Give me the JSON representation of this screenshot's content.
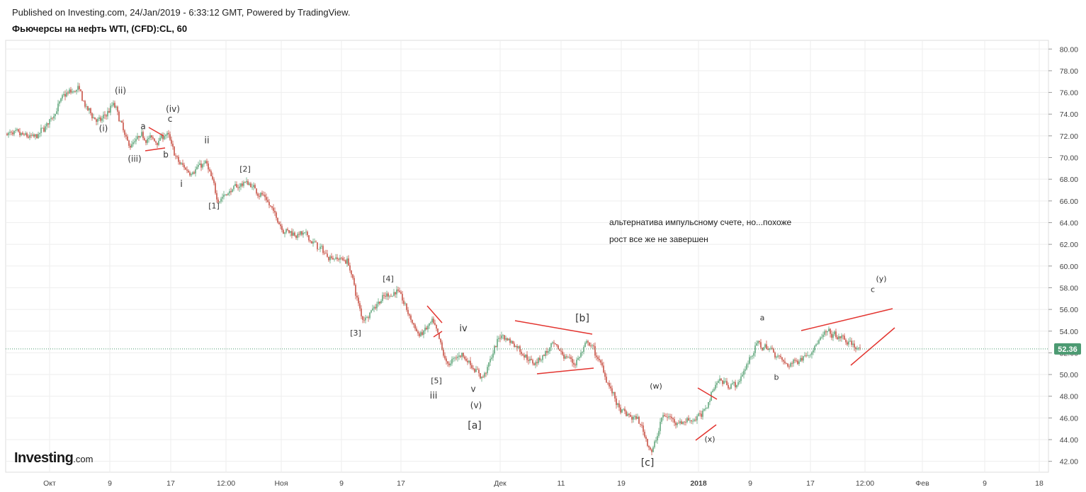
{
  "header": {
    "published": "Published on Investing.com, 24/Jan/2019 - 6:33:12 GMT, Powered by TradingView.",
    "title": "Фьючерсы на нефть WTI, (CFD):CL, 60"
  },
  "logo": {
    "main": "Investing",
    "suffix": ".com"
  },
  "note": {
    "line1": "альтернатива импульсному счете, но...похоже",
    "line2": "рост все же не завершен"
  },
  "colors": {
    "up": "#4a9a6a",
    "down": "#c0392b",
    "annotation": "#e3342f",
    "last_price_bg": "#4c9a72",
    "grid": "#eeeeee",
    "price_line": "#4c9a72"
  },
  "chart_data": {
    "type": "candlestick",
    "y_axis": {
      "min": 41,
      "max": 80.8,
      "ticks": [
        "80.00",
        "78.00",
        "76.00",
        "74.00",
        "72.00",
        "70.00",
        "68.00",
        "66.00",
        "64.00",
        "62.00",
        "60.00",
        "58.00",
        "56.00",
        "54.00",
        "52.00",
        "50.00",
        "48.00",
        "46.00",
        "44.00",
        "42.00"
      ]
    },
    "x_axis": {
      "ticks": [
        "Окт",
        "9",
        "17",
        "12:00",
        "Ноя",
        "9",
        "17",
        "Дек",
        "11",
        "19",
        "2018",
        "9",
        "17",
        "12:00",
        "Фев",
        "9",
        "18"
      ],
      "bold_tick": "2018"
    },
    "last_price": "52.36",
    "price_path": [
      {
        "i": 0,
        "p": 72.2
      },
      {
        "i": 20,
        "p": 71.8
      },
      {
        "i": 30,
        "p": 73.5
      },
      {
        "i": 40,
        "p": 75.8
      },
      {
        "i": 50,
        "p": 76.3
      },
      {
        "i": 55,
        "p": 74.5
      },
      {
        "i": 65,
        "p": 73.2
      },
      {
        "i": 75,
        "p": 75.0
      },
      {
        "i": 85,
        "p": 71.0
      },
      {
        "i": 95,
        "p": 72.0
      },
      {
        "i": 105,
        "p": 71.5
      },
      {
        "i": 112,
        "p": 72.3
      },
      {
        "i": 120,
        "p": 69.5
      },
      {
        "i": 128,
        "p": 68.7
      },
      {
        "i": 140,
        "p": 69.5
      },
      {
        "i": 148,
        "p": 66.1
      },
      {
        "i": 158,
        "p": 67.0
      },
      {
        "i": 168,
        "p": 67.8
      },
      {
        "i": 180,
        "p": 66.5
      },
      {
        "i": 195,
        "p": 63.3
      },
      {
        "i": 210,
        "p": 62.8
      },
      {
        "i": 225,
        "p": 61.0
      },
      {
        "i": 240,
        "p": 60.5
      },
      {
        "i": 250,
        "p": 55.0
      },
      {
        "i": 262,
        "p": 56.8
      },
      {
        "i": 275,
        "p": 57.8
      },
      {
        "i": 290,
        "p": 53.5
      },
      {
        "i": 300,
        "p": 54.8
      },
      {
        "i": 310,
        "p": 50.8
      },
      {
        "i": 320,
        "p": 52.0
      },
      {
        "i": 335,
        "p": 49.6
      },
      {
        "i": 348,
        "p": 53.8
      },
      {
        "i": 360,
        "p": 52.5
      },
      {
        "i": 370,
        "p": 51.0
      },
      {
        "i": 385,
        "p": 52.6
      },
      {
        "i": 400,
        "p": 51.0
      },
      {
        "i": 410,
        "p": 53.0
      },
      {
        "i": 420,
        "p": 50.5
      },
      {
        "i": 432,
        "p": 46.5
      },
      {
        "i": 445,
        "p": 45.8
      },
      {
        "i": 455,
        "p": 42.7
      },
      {
        "i": 462,
        "p": 46.3
      },
      {
        "i": 475,
        "p": 45.6
      },
      {
        "i": 490,
        "p": 46.2
      },
      {
        "i": 500,
        "p": 49.5
      },
      {
        "i": 515,
        "p": 49.0
      },
      {
        "i": 528,
        "p": 52.8
      },
      {
        "i": 540,
        "p": 52.2
      },
      {
        "i": 550,
        "p": 50.8
      },
      {
        "i": 565,
        "p": 52.0
      },
      {
        "i": 578,
        "p": 53.8
      },
      {
        "i": 590,
        "p": 53.2
      },
      {
        "i": 602,
        "p": 52.2
      }
    ],
    "candle_count": 603,
    "wave_labels": [
      {
        "t": "(i)",
        "i": 68,
        "p": 72.4,
        "s": 12
      },
      {
        "t": "(ii)",
        "i": 80,
        "p": 75.9,
        "s": 12
      },
      {
        "t": "(iii)",
        "i": 90,
        "p": 69.6,
        "s": 12
      },
      {
        "t": "a",
        "i": 96,
        "p": 72.6,
        "s": 12
      },
      {
        "t": "b",
        "i": 112,
        "p": 70.0,
        "s": 12
      },
      {
        "t": "c",
        "i": 115,
        "p": 73.3,
        "s": 12
      },
      {
        "t": "(iv)",
        "i": 117,
        "p": 74.2,
        "s": 12
      },
      {
        "t": "ii",
        "i": 141,
        "p": 71.3,
        "s": 13
      },
      {
        "t": "i",
        "i": 123,
        "p": 67.3,
        "s": 13
      },
      {
        "t": "[1]",
        "i": 146,
        "p": 65.3,
        "s": 11
      },
      {
        "t": "[2]",
        "i": 168,
        "p": 68.7,
        "s": 11
      },
      {
        "t": "[3]",
        "i": 246,
        "p": 53.6,
        "s": 11
      },
      {
        "t": "[4]",
        "i": 269,
        "p": 58.6,
        "s": 11
      },
      {
        "t": "[5]",
        "i": 303,
        "p": 49.2,
        "s": 11
      },
      {
        "t": "iii",
        "i": 301,
        "p": 47.8,
        "s": 13
      },
      {
        "t": "iv",
        "i": 322,
        "p": 54.0,
        "s": 13
      },
      {
        "t": "v",
        "i": 329,
        "p": 48.4,
        "s": 12
      },
      {
        "t": "(v)",
        "i": 331,
        "p": 46.9,
        "s": 12
      },
      {
        "t": "[a]",
        "i": 330,
        "p": 45.0,
        "s": 14
      },
      {
        "t": "[b]",
        "i": 406,
        "p": 54.9,
        "s": 14
      },
      {
        "t": "[c]",
        "i": 452,
        "p": 41.6,
        "s": 14
      },
      {
        "t": "(w)",
        "i": 458,
        "p": 48.7,
        "s": 11
      },
      {
        "t": "(x)",
        "i": 496,
        "p": 43.8,
        "s": 11
      },
      {
        "t": "a",
        "i": 533,
        "p": 55.0,
        "s": 11
      },
      {
        "t": "b",
        "i": 543,
        "p": 49.5,
        "s": 11
      },
      {
        "t": "c",
        "i": 611,
        "p": 57.6,
        "s": 11
      },
      {
        "t": "(y)",
        "i": 617,
        "p": 58.6,
        "s": 11
      }
    ]
  }
}
